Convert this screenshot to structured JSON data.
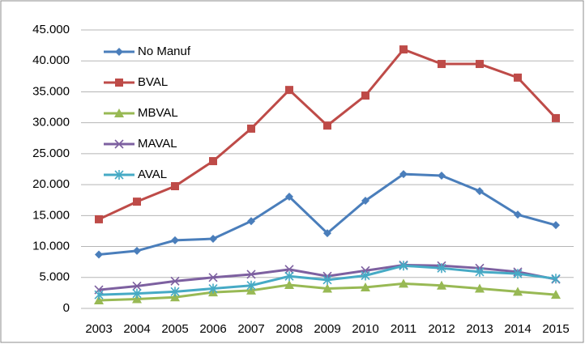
{
  "chart_data": {
    "type": "line",
    "categories": [
      "2003",
      "2004",
      "2005",
      "2006",
      "2007",
      "2008",
      "2009",
      "2010",
      "2011",
      "2012",
      "2013",
      "2014",
      "2015"
    ],
    "series": [
      {
        "name": "No Manuf",
        "color": "#4a7ebb",
        "marker": "diamond",
        "values": [
          8700,
          9300,
          11000,
          11250,
          14100,
          18050,
          12150,
          17400,
          21700,
          21450,
          18950,
          15150,
          13450
        ]
      },
      {
        "name": "BVAL",
        "color": "#be4b48",
        "marker": "square",
        "values": [
          14400,
          17250,
          19750,
          23800,
          29050,
          35300,
          29550,
          34400,
          41850,
          39500,
          39500,
          37300,
          30750
        ]
      },
      {
        "name": "MBVAL",
        "color": "#98b954",
        "marker": "triangle",
        "values": [
          1300,
          1500,
          1800,
          2600,
          2900,
          3800,
          3200,
          3400,
          4000,
          3700,
          3200,
          2700,
          2200
        ]
      },
      {
        "name": "MAVAL",
        "color": "#7d60a0",
        "marker": "x",
        "values": [
          3000,
          3600,
          4400,
          5000,
          5500,
          6300,
          5200,
          6100,
          7000,
          6900,
          6500,
          5900,
          4700
        ]
      },
      {
        "name": "AVAL",
        "color": "#46aac5",
        "marker": "star",
        "values": [
          2200,
          2400,
          2700,
          3200,
          3700,
          5200,
          4600,
          5300,
          6900,
          6500,
          5900,
          5600,
          4800
        ]
      }
    ],
    "ylim": [
      0,
      45000
    ],
    "yticks": [
      0,
      {
        "value": 5000,
        "label": "5.000"
      },
      {
        "value": 10000,
        "label": "10.000"
      },
      {
        "value": 15000,
        "label": "15.000"
      },
      {
        "value": 20000,
        "label": "20.000"
      },
      {
        "value": 25000,
        "label": "25.000"
      },
      {
        "value": 30000,
        "label": "30.000"
      },
      {
        "value": 35000,
        "label": "35.000"
      },
      {
        "value": 40000,
        "label": "40.000"
      },
      {
        "value": 45000,
        "label": "45.000"
      }
    ],
    "grid": true,
    "legend": "top-left"
  }
}
